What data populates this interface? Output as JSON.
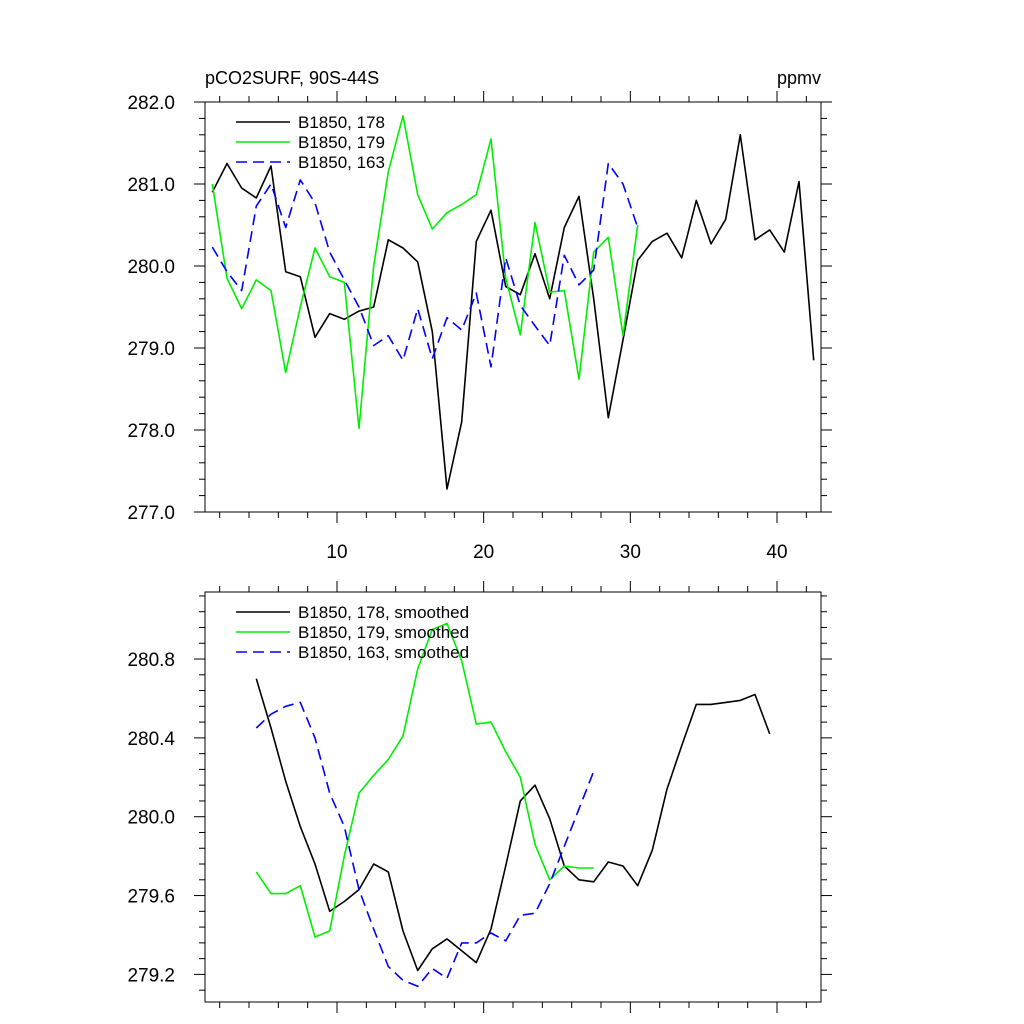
{
  "figure": {
    "background": "#ffffff"
  },
  "chart_data": [
    {
      "type": "line",
      "title_left": "pCO2SURF, 90S-44S",
      "title_right": "ppmv",
      "xlabel": "",
      "ylabel": "",
      "xlim": [
        1,
        43
      ],
      "ylim": [
        277.0,
        282.0
      ],
      "x_ticks": [
        10,
        20,
        30,
        40
      ],
      "x_tick_labels": [
        "10",
        "20",
        "30",
        "40"
      ],
      "y_ticks": [
        277.0,
        278.0,
        279.0,
        280.0,
        281.0,
        282.0
      ],
      "y_tick_labels": [
        "277.0",
        "278.0",
        "279.0",
        "280.0",
        "281.0",
        "282.0"
      ],
      "legend_position": "top-left",
      "grid": false,
      "series": [
        {
          "name": "B1850, 178",
          "color": "#000000",
          "dash": "solid",
          "x": [
            1.5,
            2.5,
            3.5,
            4.5,
            5.5,
            6.5,
            7.5,
            8.5,
            9.5,
            10.5,
            11.5,
            12.5,
            13.5,
            14.5,
            15.5,
            16.5,
            17.5,
            18.5,
            19.5,
            20.5,
            21.5,
            22.5,
            23.5,
            24.5,
            25.5,
            26.5,
            27.5,
            28.5,
            29.5,
            30.5,
            31.5,
            32.5,
            33.5,
            34.5,
            35.5,
            36.5,
            37.5,
            38.5,
            39.5,
            40.5,
            41.5,
            42.5
          ],
          "values": [
            280.9,
            281.25,
            280.95,
            280.83,
            281.22,
            279.93,
            279.87,
            279.13,
            279.42,
            279.35,
            279.45,
            279.5,
            280.32,
            280.22,
            280.05,
            279.2,
            277.28,
            278.1,
            280.3,
            280.68,
            279.75,
            279.65,
            280.15,
            279.6,
            280.47,
            280.85,
            279.6,
            278.15,
            279.1,
            280.07,
            280.3,
            280.4,
            280.1,
            280.8,
            280.27,
            280.57,
            281.6,
            280.32,
            280.44,
            280.17,
            281.03,
            278.85
          ]
        },
        {
          "name": "B1850, 179",
          "color": "#00ee00",
          "dash": "solid",
          "x": [
            1.5,
            2.5,
            3.5,
            4.5,
            5.5,
            6.5,
            7.5,
            8.5,
            9.5,
            10.5,
            11.5,
            12.5,
            13.5,
            14.5,
            15.5,
            16.5,
            17.5,
            18.5,
            19.5,
            20.5,
            21.5,
            22.5,
            23.5,
            24.5,
            25.5,
            26.5,
            27.5,
            28.5,
            29.5,
            30.5
          ],
          "values": [
            281.0,
            279.85,
            279.48,
            279.83,
            279.7,
            278.7,
            279.5,
            280.22,
            279.87,
            279.8,
            278.02,
            280.0,
            281.15,
            281.83,
            280.87,
            280.45,
            280.65,
            280.75,
            280.87,
            281.55,
            279.85,
            279.16,
            280.53,
            279.68,
            279.7,
            278.62,
            280.17,
            280.35,
            279.15,
            280.5
          ]
        },
        {
          "name": "B1850, 163",
          "color": "#0000ff",
          "dash": "dashed",
          "x": [
            1.5,
            2.5,
            3.5,
            4.5,
            5.5,
            6.5,
            7.5,
            8.5,
            9.5,
            10.5,
            11.5,
            12.5,
            13.5,
            14.5,
            15.5,
            16.5,
            17.5,
            18.5,
            19.5,
            20.5,
            21.5,
            22.5,
            23.5,
            24.5,
            25.5,
            26.5,
            27.5,
            28.5,
            29.5,
            30.5
          ],
          "values": [
            280.23,
            279.93,
            279.7,
            280.73,
            281.0,
            280.47,
            281.05,
            280.77,
            280.17,
            279.83,
            279.5,
            279.03,
            279.15,
            278.85,
            279.48,
            278.87,
            279.37,
            279.22,
            279.67,
            278.77,
            280.1,
            279.52,
            279.27,
            279.03,
            280.13,
            279.77,
            279.95,
            281.25,
            281.0,
            280.47
          ]
        }
      ]
    },
    {
      "type": "line",
      "title_left": "",
      "title_right": "",
      "xlabel": "",
      "ylabel": "",
      "xlim": [
        1,
        43
      ],
      "ylim": [
        279.06,
        281.14
      ],
      "x_ticks": [
        10,
        20,
        30,
        40
      ],
      "x_tick_labels": [],
      "y_ticks": [
        279.2,
        279.6,
        280.0,
        280.4,
        280.8
      ],
      "y_tick_labels": [
        "279.2",
        "279.6",
        "280.0",
        "280.4",
        "280.8"
      ],
      "legend_position": "top-left",
      "grid": false,
      "series": [
        {
          "name": "B1850, 178, smoothed",
          "color": "#000000",
          "dash": "solid",
          "x": [
            4.5,
            5.5,
            6.5,
            7.5,
            8.5,
            9.5,
            10.5,
            11.5,
            12.5,
            13.5,
            14.5,
            15.5,
            16.5,
            17.5,
            18.5,
            19.5,
            20.5,
            21.5,
            22.5,
            23.5,
            24.5,
            25.5,
            26.5,
            27.5,
            28.5,
            29.5,
            30.5,
            31.5,
            32.5,
            33.5,
            34.5,
            35.5,
            36.5,
            37.5,
            38.5,
            39.5
          ],
          "values": [
            280.7,
            280.45,
            280.18,
            279.95,
            279.76,
            279.52,
            279.57,
            279.63,
            279.76,
            279.72,
            279.42,
            279.22,
            279.33,
            279.38,
            279.32,
            279.26,
            279.43,
            279.75,
            280.08,
            280.16,
            279.99,
            279.75,
            279.68,
            279.67,
            279.77,
            279.75,
            279.65,
            279.83,
            280.14,
            280.36,
            280.57,
            280.57,
            280.58,
            280.59,
            280.62,
            280.42
          ]
        },
        {
          "name": "B1850, 179, smoothed",
          "color": "#00ee00",
          "dash": "solid",
          "x": [
            4.5,
            5.5,
            6.5,
            7.5,
            8.5,
            9.5,
            10.5,
            11.5,
            12.5,
            13.5,
            14.5,
            15.5,
            16.5,
            17.5,
            18.5,
            19.5,
            20.5,
            21.5,
            22.5,
            23.5,
            24.5,
            25.5,
            26.5,
            27.5
          ],
          "values": [
            279.72,
            279.61,
            279.61,
            279.65,
            279.39,
            279.42,
            279.8,
            280.12,
            280.21,
            280.29,
            280.41,
            280.75,
            280.95,
            280.98,
            280.79,
            280.47,
            280.48,
            280.33,
            280.2,
            279.86,
            279.68,
            279.75,
            279.74,
            279.74
          ]
        },
        {
          "name": "B1850, 163, smoothed",
          "color": "#0000ff",
          "dash": "dashed",
          "x": [
            4.5,
            5.5,
            6.5,
            7.5,
            8.5,
            9.5,
            10.5,
            11.5,
            12.5,
            13.5,
            14.5,
            15.5,
            16.5,
            17.5,
            18.5,
            19.5,
            20.5,
            21.5,
            22.5,
            23.5,
            24.5,
            25.5,
            26.5,
            27.5
          ],
          "values": [
            280.45,
            280.52,
            280.56,
            280.58,
            280.4,
            280.12,
            279.95,
            279.63,
            279.43,
            279.24,
            279.17,
            279.14,
            279.23,
            279.18,
            279.36,
            279.36,
            279.41,
            279.37,
            279.5,
            279.51,
            279.66,
            279.85,
            280.04,
            280.23
          ]
        }
      ]
    }
  ]
}
